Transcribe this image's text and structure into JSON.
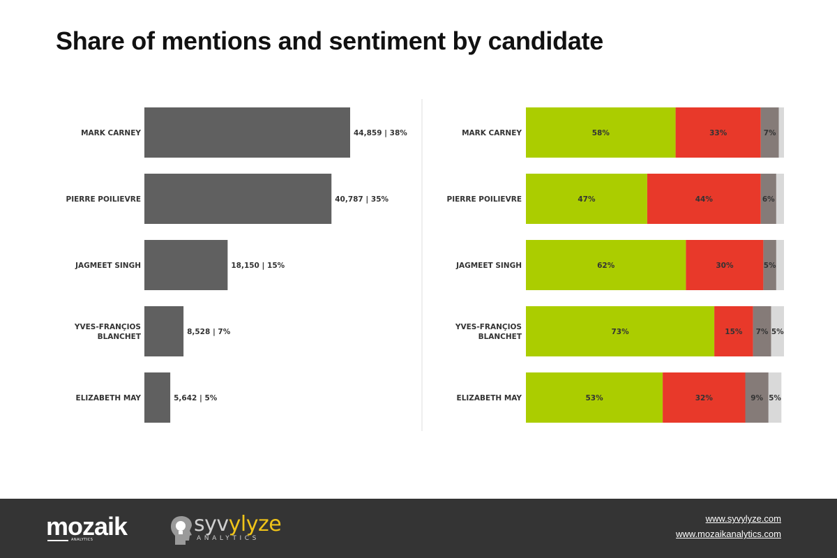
{
  "page": {
    "title": "Share of mentions and sentiment by candidate"
  },
  "chart_data": [
    {
      "type": "bar",
      "orientation": "horizontal",
      "categories": [
        "MARK CARNEY",
        "PIERRE POILIEVRE",
        "JAGMEET SINGH",
        "YVES-FRANÇIOS BLANCHET",
        "ELIZABETH MAY"
      ],
      "values": [
        44859,
        40787,
        18150,
        8528,
        5642
      ],
      "data_labels": [
        "44,859 | 38%",
        "40,787 | 35%",
        "18,150 | 15%",
        "8,528 | 7%",
        "5,642 | 5%"
      ],
      "color": "#606060",
      "xlim": [
        0,
        45000
      ],
      "grid": false
    },
    {
      "type": "bar",
      "orientation": "horizontal",
      "stacked": true,
      "percent": true,
      "categories": [
        "MARK CARNEY",
        "PIERRE POILIEVRE",
        "JAGMEET SINGH",
        "YVES-FRANÇIOS BLANCHET",
        "ELIZABETH MAY"
      ],
      "series": [
        {
          "color": "#abcd00",
          "values": [
            58,
            47,
            62,
            73,
            53
          ]
        },
        {
          "color": "#e8392a",
          "values": [
            33,
            44,
            30,
            15,
            32
          ]
        },
        {
          "color": "#857b78",
          "values": [
            7,
            6,
            5,
            7,
            9
          ]
        },
        {
          "color": "#d9d9d9",
          "values": [
            2,
            3,
            3,
            5,
            5
          ]
        }
      ],
      "data_labels": [
        [
          "58%",
          "47%",
          "62%",
          "73%",
          "53%"
        ],
        [
          "33%",
          "44%",
          "30%",
          "15%",
          "32%"
        ],
        [
          "7%",
          "6%",
          "5%",
          "7%",
          "9%"
        ],
        [
          "",
          "",
          "",
          "5%",
          "5%"
        ]
      ],
      "xlim": [
        0,
        100
      ],
      "grid": false
    }
  ],
  "footer": {
    "logo_primary": "mozaik",
    "logo_primary_sub": "ANALYTICS",
    "logo_secondary_prefix": "syv",
    "logo_secondary_accent": "ylyze",
    "logo_secondary_sub": "ANALYTICS",
    "links": [
      "www.syvylyze.com",
      "www.mozaikanalytics.com"
    ]
  },
  "colors": {
    "footer_bg": "#343434",
    "divider": "#dddddd"
  }
}
